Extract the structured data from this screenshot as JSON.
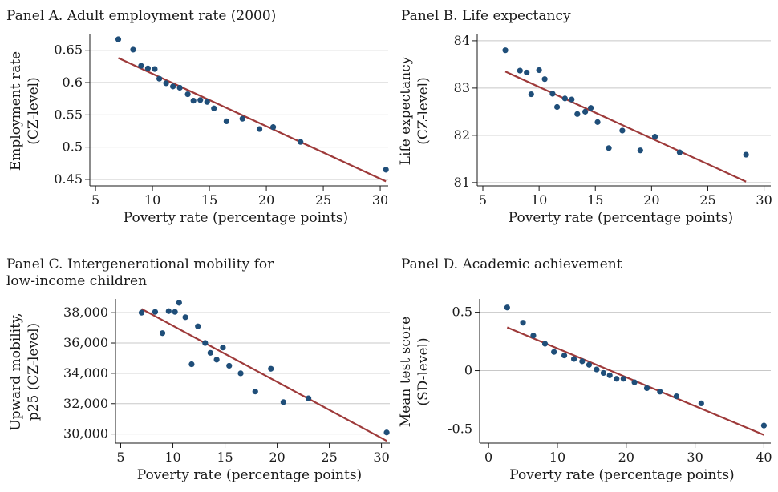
{
  "chart_data": [
    {
      "type": "scatter",
      "title_lines": [
        "Panel A. Adult employment rate (2000)"
      ],
      "xlabel": "Poverty rate (percentage points)",
      "ylabel_lines": [
        "Employment rate",
        "(CZ-level)"
      ],
      "xlim": [
        4.5,
        30.7
      ],
      "ylim": [
        0.44,
        0.672
      ],
      "xticks": [
        5,
        10,
        15,
        20,
        25,
        30
      ],
      "yticks": [
        0.45,
        0.5,
        0.55,
        0.6,
        0.65
      ],
      "ytick_labels": [
        "0.45",
        "0.5",
        "0.55",
        "0.6",
        "0.65"
      ],
      "grid": "horizontal",
      "points": [
        [
          7.0,
          0.667
        ],
        [
          8.3,
          0.651
        ],
        [
          9.0,
          0.626
        ],
        [
          9.6,
          0.622
        ],
        [
          10.2,
          0.621
        ],
        [
          10.6,
          0.606
        ],
        [
          11.2,
          0.599
        ],
        [
          11.8,
          0.594
        ],
        [
          12.4,
          0.592
        ],
        [
          13.1,
          0.582
        ],
        [
          13.6,
          0.572
        ],
        [
          14.2,
          0.573
        ],
        [
          14.8,
          0.57
        ],
        [
          15.4,
          0.56
        ],
        [
          16.5,
          0.54
        ],
        [
          17.9,
          0.544
        ],
        [
          19.4,
          0.528
        ],
        [
          20.6,
          0.531
        ],
        [
          23.0,
          0.508
        ],
        [
          30.5,
          0.465
        ]
      ],
      "fit_line": [
        [
          7.0,
          0.638
        ],
        [
          30.5,
          0.447
        ]
      ],
      "colors": {
        "points": "#1f4e79",
        "line": "#9e3a3a",
        "grid": "#c8c8c8"
      }
    },
    {
      "type": "scatter",
      "title_lines": [
        "Panel B. Life expectancy"
      ],
      "xlabel": "Poverty rate (percentage points)",
      "ylabel_lines": [
        "Life expectancy",
        "(CZ-level)"
      ],
      "xlim": [
        4.5,
        30.6
      ],
      "ylim": [
        80.93,
        84.1
      ],
      "xticks": [
        5,
        10,
        15,
        20,
        25,
        30
      ],
      "yticks": [
        81,
        82,
        83,
        84
      ],
      "ytick_labels": [
        "81",
        "82",
        "83",
        "84"
      ],
      "grid": "horizontal",
      "points": [
        [
          7.0,
          83.8
        ],
        [
          8.3,
          83.37
        ],
        [
          8.9,
          83.33
        ],
        [
          9.3,
          82.87
        ],
        [
          10.0,
          83.38
        ],
        [
          10.5,
          83.19
        ],
        [
          11.2,
          82.88
        ],
        [
          11.6,
          82.6
        ],
        [
          12.3,
          82.78
        ],
        [
          12.9,
          82.76
        ],
        [
          13.4,
          82.45
        ],
        [
          14.1,
          82.5
        ],
        [
          14.6,
          82.58
        ],
        [
          15.2,
          82.28
        ],
        [
          16.2,
          81.73
        ],
        [
          17.4,
          82.1
        ],
        [
          19.0,
          81.68
        ],
        [
          20.3,
          81.97
        ],
        [
          22.5,
          81.64
        ],
        [
          28.4,
          81.59
        ]
      ],
      "fit_line": [
        [
          7.0,
          83.35
        ],
        [
          28.4,
          81.02
        ]
      ],
      "colors": {
        "points": "#1f4e79",
        "line": "#9e3a3a",
        "grid": "#c8c8c8"
      }
    },
    {
      "type": "scatter",
      "title_lines": [
        "Panel C. Intergenerational mobility for",
        "low-income children"
      ],
      "xlabel": "Poverty rate (percentage points)",
      "ylabel_lines": [
        "Upward mobility,",
        "p25 (CZ-level)"
      ],
      "xlim": [
        4.5,
        30.8
      ],
      "ylim": [
        29400,
        38800
      ],
      "xticks": [
        5,
        10,
        15,
        20,
        25,
        30
      ],
      "yticks": [
        30000,
        32000,
        34000,
        36000,
        38000
      ],
      "ytick_labels": [
        "30,000",
        "32,000",
        "34,000",
        "36,000",
        "38,000"
      ],
      "grid": "horizontal",
      "points": [
        [
          7.0,
          38000
        ],
        [
          8.3,
          38050
        ],
        [
          9.0,
          36650
        ],
        [
          9.6,
          38100
        ],
        [
          10.2,
          38050
        ],
        [
          10.6,
          38650
        ],
        [
          11.2,
          37700
        ],
        [
          11.8,
          34600
        ],
        [
          12.4,
          37100
        ],
        [
          13.1,
          36000
        ],
        [
          13.6,
          35350
        ],
        [
          14.2,
          34900
        ],
        [
          14.8,
          35700
        ],
        [
          15.4,
          34500
        ],
        [
          16.5,
          34000
        ],
        [
          17.9,
          32800
        ],
        [
          19.4,
          34300
        ],
        [
          20.6,
          32100
        ],
        [
          23.0,
          32350
        ],
        [
          30.5,
          30100
        ]
      ],
      "fit_line": [
        [
          7.0,
          38250
        ],
        [
          30.5,
          29550
        ]
      ],
      "colors": {
        "points": "#1f4e79",
        "line": "#9e3a3a",
        "grid": "#c8c8c8"
      }
    },
    {
      "type": "scatter",
      "title_lines": [
        "Panel D. Academic achievement"
      ],
      "xlabel": "Poverty rate (percentage points)",
      "ylabel_lines": [
        "Mean test score",
        "(SD-level)"
      ],
      "xlim": [
        -1.3,
        41.0
      ],
      "ylim": [
        -0.62,
        0.6
      ],
      "xticks": [
        0,
        10,
        20,
        30,
        40
      ],
      "yticks": [
        -0.5,
        0,
        0.5
      ],
      "ytick_labels": [
        "-0.5",
        "0",
        "0.5"
      ],
      "grid": "horizontal",
      "points": [
        [
          2.7,
          0.54
        ],
        [
          5.0,
          0.41
        ],
        [
          6.5,
          0.3
        ],
        [
          8.2,
          0.23
        ],
        [
          9.5,
          0.16
        ],
        [
          11.0,
          0.13
        ],
        [
          12.4,
          0.1
        ],
        [
          13.6,
          0.08
        ],
        [
          14.6,
          0.05
        ],
        [
          15.7,
          0.01
        ],
        [
          16.7,
          -0.02
        ],
        [
          17.6,
          -0.04
        ],
        [
          18.6,
          -0.07
        ],
        [
          19.6,
          -0.07
        ],
        [
          21.2,
          -0.1
        ],
        [
          23.0,
          -0.15
        ],
        [
          24.9,
          -0.18
        ],
        [
          27.3,
          -0.22
        ],
        [
          30.9,
          -0.28
        ],
        [
          40.0,
          -0.47
        ]
      ],
      "fit_line": [
        [
          2.7,
          0.37
        ],
        [
          40.0,
          -0.55
        ]
      ],
      "colors": {
        "points": "#1f4e79",
        "line": "#9e3a3a",
        "grid": "#c8c8c8"
      }
    }
  ]
}
